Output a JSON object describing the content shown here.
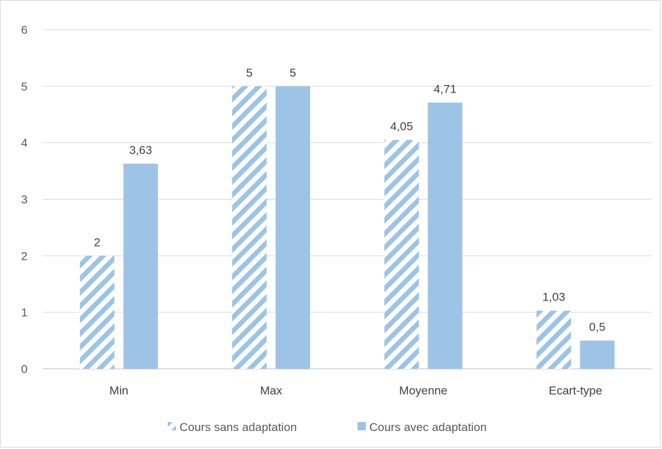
{
  "chart_data": {
    "type": "bar",
    "categories": [
      "Min",
      "Max",
      "Moyenne",
      "Ecart-type"
    ],
    "series": [
      {
        "name": "Cours sans adaptation",
        "values": [
          2,
          5,
          4.05,
          1.03
        ],
        "labels": [
          "2",
          "5",
          "4,05",
          "1,03"
        ],
        "color": "#9dc3e6",
        "pattern": "diagonal-stripes"
      },
      {
        "name": "Cours avec adaptation",
        "values": [
          3.63,
          5,
          4.71,
          0.5
        ],
        "labels": [
          "3,63",
          "5",
          "4,71",
          "0,5"
        ],
        "color": "#9dc3e6",
        "pattern": "solid"
      }
    ],
    "ylim": [
      0,
      6
    ],
    "yticks": [
      "0",
      "1",
      "2",
      "3",
      "4",
      "5",
      "6"
    ],
    "grid": true,
    "legend": "bottom",
    "title": "",
    "xlabel": "",
    "ylabel": ""
  }
}
